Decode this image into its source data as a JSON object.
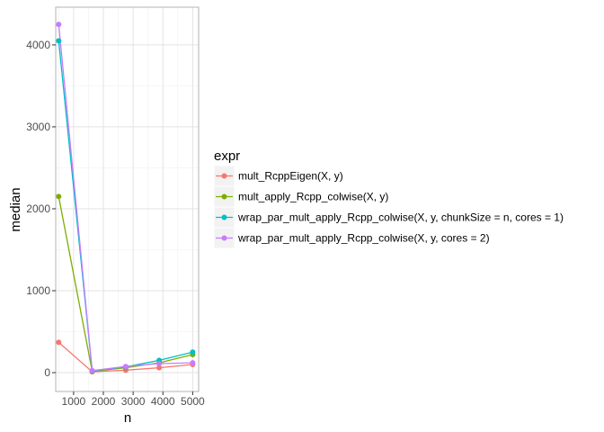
{
  "chart_data": {
    "type": "line",
    "xlabel": "n",
    "ylabel": "median",
    "xlim": [
      400,
      5200
    ],
    "ylim": [
      -230,
      4460
    ],
    "x_ticks": [
      1000,
      2000,
      3000,
      4000,
      5000
    ],
    "y_ticks": [
      0,
      1000,
      2000,
      3000,
      4000
    ],
    "grid": true,
    "legend_title": "expr",
    "legend_position": "right",
    "x": [
      500,
      1625,
      2750,
      3875,
      5000
    ],
    "series": [
      {
        "name": "mult_RcppEigen(X, y)",
        "color": "#F8766D",
        "values": [
          370,
          10,
          30,
          60,
          100
        ]
      },
      {
        "name": "mult_apply_Rcpp_colwise(X, y)",
        "color": "#7CAE00",
        "values": [
          2150,
          15,
          60,
          120,
          220
        ]
      },
      {
        "name": "wrap_par_mult_apply_Rcpp_colwise(X, y, chunkSize = n, cores = 1)",
        "color": "#00BFC4",
        "values": [
          4050,
          20,
          70,
          150,
          250
        ]
      },
      {
        "name": "wrap_par_mult_apply_Rcpp_colwise(X, y, cores = 2)",
        "color": "#C77CFF",
        "values": [
          4250,
          25,
          75,
          110,
          120
        ]
      }
    ]
  }
}
